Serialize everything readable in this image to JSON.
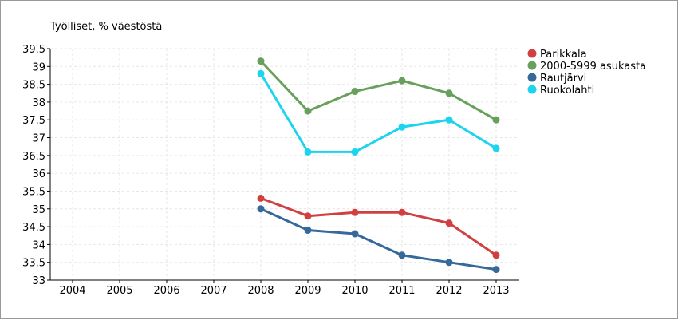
{
  "chart_data": {
    "type": "line",
    "title": "Työlliset, % väestöstä",
    "xlabel": "",
    "ylabel": "",
    "x": [
      "2004",
      "2005",
      "2006",
      "2007",
      "2008",
      "2009",
      "2010",
      "2011",
      "2012",
      "2013"
    ],
    "ylim": [
      33,
      39.5
    ],
    "yticks": [
      "33",
      "33.5",
      "34",
      "34.5",
      "35",
      "35.5",
      "36",
      "36.5",
      "37",
      "37.5",
      "38",
      "38.5",
      "39",
      "39.5"
    ],
    "grid": true,
    "legend_position": "right",
    "series": [
      {
        "name": "Parikkala",
        "color": "#d04040",
        "values": [
          null,
          null,
          null,
          null,
          35.3,
          34.8,
          34.9,
          34.9,
          34.6,
          33.7
        ]
      },
      {
        "name": "2000-5999 asukasta",
        "color": "#67a05a",
        "values": [
          null,
          null,
          null,
          null,
          39.15,
          37.75,
          38.3,
          38.6,
          38.25,
          37.5
        ]
      },
      {
        "name": "Rautjärvi",
        "color": "#34699a",
        "values": [
          null,
          null,
          null,
          null,
          35.0,
          34.4,
          34.3,
          33.7,
          33.5,
          33.3
        ]
      },
      {
        "name": "Ruokolahti",
        "color": "#1cd4ee",
        "values": [
          null,
          null,
          null,
          null,
          38.8,
          36.6,
          36.6,
          37.3,
          37.5,
          36.7
        ]
      }
    ]
  }
}
